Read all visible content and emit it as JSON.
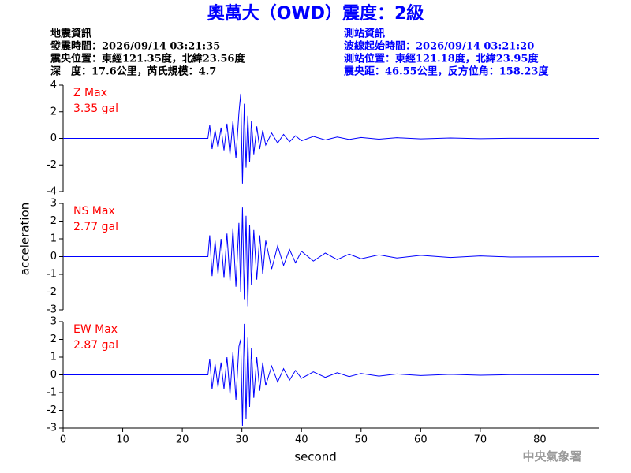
{
  "header": {
    "title": "奧萬大（OWD）震度：2級",
    "left": [
      "地震資訊",
      "發震時間：2026/09/14 03:21:35",
      "震央位置：東經121.35度，北緯23.56度",
      "深　度：17.6公里，芮氏規模：4.7"
    ],
    "right": [
      "測站資訊",
      "波線起始時間：2026/09/14 03:21:20",
      "測站位置：東經121.18度，北緯23.95度",
      "震央距：46.55公里，反方位角：158.23度"
    ]
  },
  "y_label": "acceleration",
  "x_label": "second",
  "watermark": "中央氣象署",
  "chart_data": [
    {
      "type": "line",
      "annotations": [
        "Z Max",
        "3.35 gal"
      ],
      "xlim": [
        0,
        90
      ],
      "ylim": [
        -4,
        4
      ],
      "yticks": [
        -4,
        -2,
        0,
        2,
        4
      ],
      "x": [
        0,
        24.3,
        24.6,
        25,
        25.5,
        26,
        26.5,
        27,
        27.5,
        28,
        28.5,
        29,
        29.5,
        29.8,
        30.1,
        30.4,
        30.7,
        31,
        31.3,
        31.6,
        32,
        32.5,
        33,
        33.5,
        34,
        35,
        36,
        37,
        38,
        39,
        40,
        42,
        44,
        46,
        48,
        50,
        53,
        56,
        60,
        65,
        70,
        75,
        90
      ],
      "series": [
        {
          "color": "#0000ff",
          "values": [
            0,
            0,
            1.0,
            -0.8,
            0.6,
            -0.7,
            0.8,
            -0.9,
            1.1,
            -1.2,
            1.3,
            -1.5,
            1.9,
            3.35,
            -3.4,
            2.6,
            -2.2,
            1.7,
            -1.8,
            1.3,
            -1.2,
            0.9,
            -0.8,
            0.6,
            -0.5,
            0.4,
            -0.35,
            0.3,
            -0.25,
            0.2,
            -0.18,
            0.15,
            -0.12,
            0.1,
            -0.08,
            0.07,
            -0.06,
            0.05,
            -0.04,
            0.03,
            -0.02,
            0.01,
            0
          ]
        }
      ]
    },
    {
      "type": "line",
      "annotations": [
        "NS Max",
        "2.77 gal"
      ],
      "xlim": [
        0,
        90
      ],
      "ylim": [
        -3,
        3
      ],
      "yticks": [
        -3,
        -2,
        -1,
        0,
        1,
        2,
        3
      ],
      "x": [
        0,
        24.3,
        24.6,
        25,
        25.5,
        26,
        26.5,
        27,
        27.5,
        28,
        28.5,
        29,
        29.5,
        29.8,
        30.1,
        30.4,
        30.7,
        31,
        31.3,
        31.6,
        32,
        32.5,
        33,
        33.5,
        34,
        35,
        36,
        37,
        38,
        39,
        40,
        42,
        44,
        46,
        48,
        50,
        53,
        56,
        60,
        65,
        70,
        75,
        90
      ],
      "series": [
        {
          "color": "#0000ff",
          "values": [
            0,
            0,
            1.2,
            -1.1,
            0.9,
            -1.0,
            1.0,
            -1.2,
            1.3,
            -1.4,
            1.6,
            -1.7,
            1.9,
            -2.0,
            2.77,
            -2.4,
            2.3,
            -2.8,
            1.8,
            -1.6,
            1.5,
            -1.3,
            1.2,
            -1.0,
            0.9,
            -0.7,
            0.6,
            -0.5,
            0.4,
            -0.35,
            0.3,
            -0.25,
            0.2,
            -0.17,
            0.14,
            -0.12,
            0.1,
            -0.08,
            0.07,
            -0.05,
            0.04,
            -0.02,
            0
          ]
        }
      ]
    },
    {
      "type": "line",
      "annotations": [
        "EW Max",
        "2.87 gal"
      ],
      "xlim": [
        0,
        90
      ],
      "ylim": [
        -3,
        3
      ],
      "yticks": [
        -3,
        -2,
        -1,
        0,
        1,
        2,
        3
      ],
      "xticks": [
        0,
        10,
        20,
        30,
        40,
        50,
        60,
        70,
        80
      ],
      "x": [
        0,
        24.3,
        24.6,
        25,
        25.5,
        26,
        26.5,
        27,
        27.5,
        28,
        28.5,
        29,
        29.5,
        29.8,
        30.1,
        30.4,
        30.7,
        31,
        31.3,
        31.6,
        32,
        32.5,
        33,
        33.5,
        34,
        35,
        36,
        37,
        38,
        39,
        40,
        42,
        44,
        46,
        48,
        50,
        53,
        56,
        60,
        65,
        70,
        75,
        90
      ],
      "series": [
        {
          "color": "#0000ff",
          "values": [
            0,
            0,
            0.9,
            -0.8,
            0.6,
            -0.7,
            0.7,
            -0.8,
            1.0,
            -1.1,
            1.3,
            -1.4,
            1.6,
            2.0,
            -2.9,
            2.87,
            -2.5,
            2.1,
            -1.8,
            1.5,
            -1.3,
            1.0,
            -0.9,
            0.7,
            -0.6,
            0.5,
            -0.4,
            0.35,
            -0.3,
            0.25,
            -0.2,
            0.17,
            -0.14,
            0.12,
            -0.1,
            0.08,
            -0.07,
            0.05,
            -0.04,
            0.03,
            -0.02,
            0.01,
            0
          ]
        }
      ]
    }
  ]
}
